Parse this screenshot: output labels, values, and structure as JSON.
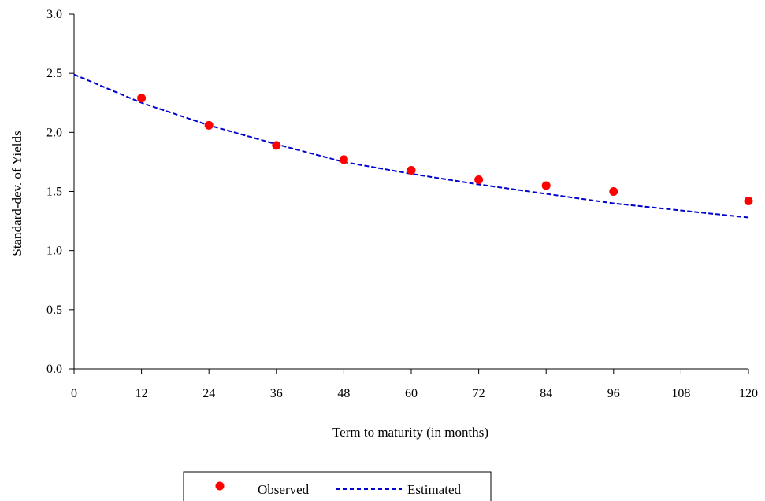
{
  "chart_data": {
    "type": "scatter",
    "title": "",
    "xlabel": "Term to maturity (in months)",
    "ylabel": "Standard-dev. of Yields",
    "xlim": [
      0,
      120
    ],
    "ylim": [
      0,
      3.0
    ],
    "xticks": [
      "0",
      "12",
      "24",
      "36",
      "48",
      "60",
      "72",
      "84",
      "96",
      "108",
      "120"
    ],
    "yticks": [
      "0.0",
      "0.5",
      "1.0",
      "1.5",
      "2.0",
      "2.5",
      "3.0"
    ],
    "grid": false,
    "legend_position": "bottom",
    "series": [
      {
        "name": "Observed",
        "kind": "scatter",
        "color": "#ff0000",
        "x": [
          12,
          24,
          36,
          48,
          60,
          72,
          84,
          96,
          120
        ],
        "y": [
          2.29,
          2.06,
          1.89,
          1.77,
          1.68,
          1.6,
          1.55,
          1.5,
          1.42
        ]
      },
      {
        "name": "Estimated",
        "kind": "line",
        "style": "dashed",
        "color": "#0000cc",
        "x": [
          0,
          12,
          24,
          36,
          48,
          60,
          72,
          84,
          96,
          108,
          120
        ],
        "y": [
          2.49,
          2.25,
          2.06,
          1.9,
          1.75,
          1.65,
          1.56,
          1.48,
          1.4,
          1.34,
          1.28
        ]
      }
    ]
  }
}
